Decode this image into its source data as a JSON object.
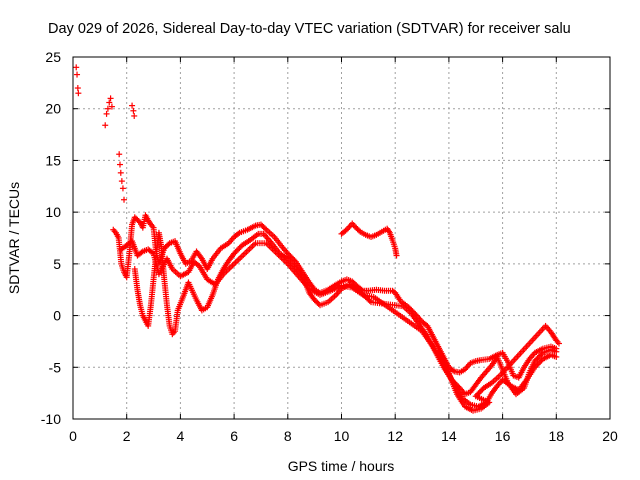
{
  "chart_data": {
    "type": "scatter",
    "title": "Day 029 of 2026, Sidereal Day-to-day VTEC variation (SDTVAR) for receiver salu",
    "xlabel": "GPS time / hours",
    "ylabel": "SDTVAR / TECUs",
    "xlim": [
      0,
      20
    ],
    "ylim": [
      -10,
      25
    ],
    "xticks": [
      "0",
      "2",
      "4",
      "6",
      "8",
      "10",
      "12",
      "14",
      "16",
      "18",
      "20"
    ],
    "yticks": [
      "-10",
      "-5",
      "0",
      "5",
      "10",
      "15",
      "20",
      "25"
    ],
    "grid": true,
    "marker": "plus",
    "color": "#ff0000",
    "series": [
      {
        "name": "early-scatter",
        "points": [
          [
            0.12,
            24.0
          ],
          [
            0.15,
            23.3
          ],
          [
            0.18,
            22.0
          ],
          [
            0.2,
            21.5
          ],
          [
            1.2,
            18.4
          ],
          [
            1.25,
            19.5
          ],
          [
            1.3,
            20.0
          ],
          [
            1.35,
            20.6
          ],
          [
            1.4,
            21.0
          ],
          [
            1.45,
            20.2
          ],
          [
            2.2,
            20.3
          ],
          [
            2.25,
            19.8
          ],
          [
            2.28,
            19.3
          ],
          [
            1.72,
            15.6
          ],
          [
            1.75,
            14.6
          ],
          [
            1.78,
            13.8
          ],
          [
            1.82,
            13.0
          ],
          [
            1.86,
            12.3
          ],
          [
            1.9,
            11.2
          ]
        ]
      },
      {
        "name": "track-a",
        "points": [
          [
            1.5,
            8.3
          ],
          [
            1.6,
            8.0
          ],
          [
            1.7,
            7.5
          ],
          [
            1.8,
            5.0
          ],
          [
            1.9,
            4.2
          ],
          [
            2.0,
            3.7
          ],
          [
            2.1,
            6.0
          ],
          [
            2.2,
            8.8
          ],
          [
            2.3,
            9.5
          ],
          [
            2.5,
            9.0
          ],
          [
            2.6,
            8.5
          ],
          [
            2.7,
            9.7
          ],
          [
            2.8,
            9.2
          ],
          [
            2.9,
            8.8
          ],
          [
            3.0,
            8.5
          ],
          [
            3.1,
            6.0
          ],
          [
            3.2,
            5.0
          ],
          [
            3.4,
            6.5
          ],
          [
            3.6,
            7.0
          ],
          [
            3.8,
            7.2
          ],
          [
            4.0,
            6.0
          ],
          [
            4.2,
            5.0
          ],
          [
            4.4,
            5.3
          ],
          [
            4.6,
            6.2
          ],
          [
            4.8,
            5.5
          ],
          [
            5.0,
            4.5
          ],
          [
            5.2,
            5.5
          ],
          [
            5.5,
            6.5
          ],
          [
            5.8,
            7.0
          ],
          [
            6.0,
            7.6
          ],
          [
            6.2,
            8.0
          ],
          [
            6.5,
            8.3
          ],
          [
            6.8,
            8.7
          ],
          [
            7.0,
            8.8
          ],
          [
            7.2,
            8.3
          ],
          [
            7.5,
            7.6
          ],
          [
            7.8,
            6.6
          ],
          [
            8.0,
            6.0
          ],
          [
            8.3,
            5.2
          ],
          [
            8.6,
            4.0
          ],
          [
            8.8,
            3.2
          ],
          [
            9.0,
            2.5
          ],
          [
            9.2,
            2.2
          ],
          [
            9.5,
            2.5
          ],
          [
            9.8,
            3.0
          ],
          [
            10.0,
            3.3
          ],
          [
            10.2,
            3.5
          ],
          [
            10.4,
            3.3
          ],
          [
            10.6,
            2.8
          ],
          [
            10.8,
            2.4
          ],
          [
            11.0,
            2.4
          ],
          [
            11.3,
            2.5
          ],
          [
            11.6,
            2.4
          ],
          [
            11.9,
            2.4
          ],
          [
            12.0,
            2.2
          ],
          [
            12.2,
            1.4
          ],
          [
            12.5,
            0.8
          ],
          [
            12.8,
            0.0
          ],
          [
            13.0,
            -0.6
          ],
          [
            13.2,
            -1.0
          ],
          [
            13.4,
            -2.0
          ],
          [
            13.6,
            -3.0
          ],
          [
            13.8,
            -4.0
          ],
          [
            14.0,
            -5.0
          ],
          [
            14.2,
            -5.4
          ],
          [
            14.4,
            -5.5
          ],
          [
            14.6,
            -5.2
          ],
          [
            14.8,
            -4.6
          ],
          [
            15.0,
            -4.4
          ],
          [
            15.2,
            -4.3
          ],
          [
            15.5,
            -4.2
          ],
          [
            15.8,
            -3.8
          ],
          [
            16.0,
            -3.6
          ],
          [
            16.2,
            -4.5
          ],
          [
            16.4,
            -5.8
          ],
          [
            16.6,
            -6.0
          ],
          [
            16.8,
            -5.0
          ],
          [
            17.0,
            -4.2
          ],
          [
            17.2,
            -3.6
          ],
          [
            17.5,
            -3.2
          ],
          [
            17.8,
            -3.0
          ],
          [
            18.0,
            -3.2
          ]
        ]
      },
      {
        "name": "track-b",
        "points": [
          [
            2.3,
            4.5
          ],
          [
            2.4,
            2.5
          ],
          [
            2.5,
            1.0
          ],
          [
            2.6,
            0.0
          ],
          [
            2.7,
            -0.5
          ],
          [
            2.8,
            -1.0
          ],
          [
            2.9,
            1.0
          ],
          [
            3.0,
            3.5
          ],
          [
            3.1,
            6.0
          ],
          [
            3.2,
            8.0
          ],
          [
            3.3,
            6.5
          ],
          [
            3.4,
            3.5
          ],
          [
            3.5,
            1.0
          ],
          [
            3.6,
            -1.0
          ],
          [
            3.7,
            -1.8
          ],
          [
            3.8,
            -1.5
          ],
          [
            3.9,
            0.5
          ],
          [
            4.1,
            1.8
          ],
          [
            4.3,
            3.2
          ],
          [
            4.6,
            1.5
          ],
          [
            4.8,
            0.5
          ],
          [
            5.0,
            0.8
          ],
          [
            5.2,
            2.0
          ],
          [
            5.4,
            3.5
          ],
          [
            5.6,
            4.5
          ],
          [
            5.8,
            5.3
          ],
          [
            6.0,
            6.0
          ],
          [
            6.3,
            6.8
          ],
          [
            6.6,
            7.3
          ],
          [
            6.9,
            7.9
          ],
          [
            7.1,
            7.9
          ],
          [
            7.4,
            7.0
          ],
          [
            7.7,
            6.0
          ],
          [
            8.0,
            5.5
          ],
          [
            8.3,
            4.6
          ],
          [
            8.6,
            3.5
          ],
          [
            8.8,
            2.2
          ],
          [
            9.0,
            1.5
          ],
          [
            9.2,
            1.0
          ],
          [
            9.5,
            1.3
          ],
          [
            9.8,
            2.0
          ],
          [
            10.0,
            2.6
          ],
          [
            10.3,
            3.0
          ],
          [
            10.6,
            2.5
          ],
          [
            10.9,
            1.8
          ],
          [
            11.1,
            1.3
          ],
          [
            12.3,
            0.9
          ],
          [
            12.6,
            0.2
          ],
          [
            12.9,
            -0.9
          ],
          [
            13.2,
            -2.0
          ],
          [
            13.5,
            -3.5
          ],
          [
            13.8,
            -5.0
          ],
          [
            14.1,
            -6.2
          ],
          [
            14.4,
            -7.0
          ],
          [
            14.6,
            -7.6
          ],
          [
            14.8,
            -7.4
          ],
          [
            15.0,
            -6.7
          ],
          [
            15.2,
            -6.0
          ],
          [
            15.4,
            -5.4
          ],
          [
            15.6,
            -4.8
          ],
          [
            15.8,
            -4.0
          ],
          [
            16.2,
            -6.5
          ],
          [
            16.5,
            -7.6
          ],
          [
            16.8,
            -7.0
          ],
          [
            17.0,
            -5.5
          ],
          [
            17.2,
            -4.4
          ],
          [
            17.5,
            -3.6
          ],
          [
            17.8,
            -3.3
          ],
          [
            18.0,
            -3.5
          ]
        ]
      },
      {
        "name": "track-c",
        "points": [
          [
            1.8,
            6.4
          ],
          [
            2.0,
            6.8
          ],
          [
            2.2,
            7.2
          ],
          [
            2.4,
            5.8
          ],
          [
            2.6,
            6.2
          ],
          [
            2.8,
            6.4
          ],
          [
            3.0,
            6.0
          ],
          [
            3.2,
            4.0
          ],
          [
            3.5,
            5.5
          ],
          [
            3.7,
            4.5
          ],
          [
            4.0,
            3.8
          ],
          [
            4.3,
            4.2
          ],
          [
            4.5,
            5.2
          ],
          [
            4.7,
            4.8
          ],
          [
            5.0,
            3.5
          ],
          [
            5.3,
            3.0
          ],
          [
            5.6,
            4.0
          ],
          [
            6.0,
            5.0
          ],
          [
            6.4,
            6.0
          ],
          [
            6.8,
            7.0
          ],
          [
            7.2,
            7.0
          ],
          [
            7.6,
            6.0
          ],
          [
            8.0,
            5.0
          ],
          [
            8.4,
            3.8
          ],
          [
            8.8,
            2.6
          ],
          [
            9.2,
            2.0
          ],
          [
            9.6,
            2.4
          ],
          [
            10.0,
            2.9
          ],
          [
            10.4,
            2.7
          ],
          [
            10.8,
            2.0
          ],
          [
            11.2,
            1.8
          ],
          [
            13.0,
            -1.5
          ],
          [
            13.4,
            -3.0
          ],
          [
            13.8,
            -4.8
          ],
          [
            14.2,
            -6.6
          ],
          [
            14.5,
            -8.0
          ],
          [
            14.8,
            -8.6
          ],
          [
            15.1,
            -8.8
          ],
          [
            15.4,
            -8.4
          ],
          [
            15.6,
            -7.5
          ],
          [
            15.8,
            -6.8
          ],
          [
            16.0,
            -6.2
          ],
          [
            16.3,
            -6.8
          ],
          [
            16.6,
            -7.2
          ],
          [
            16.9,
            -6.2
          ],
          [
            17.2,
            -5.0
          ],
          [
            17.5,
            -4.2
          ],
          [
            17.8,
            -3.8
          ],
          [
            18.0,
            -4.0
          ]
        ]
      },
      {
        "name": "track-d",
        "points": [
          [
            13.6,
            -3.4
          ],
          [
            14.0,
            -5.6
          ],
          [
            14.3,
            -7.6
          ],
          [
            14.6,
            -8.8
          ],
          [
            14.9,
            -9.2
          ],
          [
            15.2,
            -9.0
          ],
          [
            15.5,
            -8.4
          ],
          [
            15.0,
            -7.8
          ],
          [
            15.3,
            -7.0
          ],
          [
            15.6,
            -6.5
          ],
          [
            15.9,
            -5.8
          ],
          [
            17.6,
            -1.0
          ],
          [
            17.7,
            -1.3
          ],
          [
            17.8,
            -1.6
          ],
          [
            17.9,
            -2.0
          ],
          [
            18.0,
            -2.4
          ],
          [
            18.1,
            -2.7
          ]
        ]
      },
      {
        "name": "late-arc",
        "points": [
          [
            10.0,
            7.9
          ],
          [
            10.15,
            8.2
          ],
          [
            10.3,
            8.6
          ],
          [
            10.4,
            8.9
          ],
          [
            10.5,
            8.6
          ],
          [
            10.7,
            8.1
          ],
          [
            10.9,
            7.8
          ],
          [
            11.1,
            7.6
          ],
          [
            11.3,
            7.8
          ],
          [
            11.5,
            8.1
          ],
          [
            11.7,
            8.4
          ],
          [
            11.8,
            8.0
          ],
          [
            11.9,
            7.3
          ],
          [
            12.0,
            6.5
          ],
          [
            12.05,
            5.8
          ]
        ]
      }
    ]
  }
}
